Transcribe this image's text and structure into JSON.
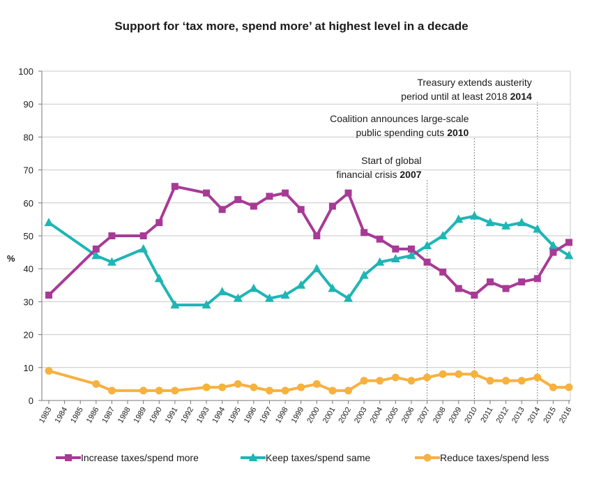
{
  "chart_data": {
    "type": "line",
    "title": "Support for ‘tax more, spend more’ at highest level in a decade",
    "ylabel": "%",
    "ylim": [
      0,
      100
    ],
    "yticks": [
      0,
      10,
      20,
      30,
      40,
      50,
      60,
      70,
      80,
      90,
      100
    ],
    "grid": true,
    "categories": [
      "1983",
      "1984",
      "1985",
      "1986",
      "1987",
      "1988",
      "1989",
      "1990",
      "1991",
      "1992",
      "1993",
      "1994",
      "1995",
      "1996",
      "1997",
      "1998",
      "1999",
      "2000",
      "2001",
      "2002",
      "2003",
      "2004",
      "2005",
      "2006",
      "2007",
      "2008",
      "2009",
      "2010",
      "2011",
      "2012",
      "2013",
      "2014",
      "2015",
      "2016"
    ],
    "series": [
      {
        "name": "Increase taxes/spend more",
        "color": "#a83a96",
        "marker": "square",
        "points": [
          [
            "1983",
            32
          ],
          [
            "1986",
            46
          ],
          [
            "1987",
            50
          ],
          [
            "1989",
            50
          ],
          [
            "1990",
            54
          ],
          [
            "1991",
            65
          ],
          [
            "1993",
            63
          ],
          [
            "1994",
            58
          ],
          [
            "1995",
            61
          ],
          [
            "1996",
            59
          ],
          [
            "1997",
            62
          ],
          [
            "1998",
            63
          ],
          [
            "1999",
            58
          ],
          [
            "2000",
            50
          ],
          [
            "2001",
            59
          ],
          [
            "2002",
            63
          ],
          [
            "2003",
            51
          ],
          [
            "2004",
            49
          ],
          [
            "2005",
            46
          ],
          [
            "2006",
            46
          ],
          [
            "2007",
            42
          ],
          [
            "2008",
            39
          ],
          [
            "2009",
            34
          ],
          [
            "2010",
            32
          ],
          [
            "2011",
            36
          ],
          [
            "2012",
            34
          ],
          [
            "2013",
            36
          ],
          [
            "2014",
            37
          ],
          [
            "2015",
            45
          ],
          [
            "2016",
            48
          ]
        ]
      },
      {
        "name": "Keep taxes/spend same",
        "color": "#1fb5b5",
        "marker": "triangle",
        "points": [
          [
            "1983",
            54
          ],
          [
            "1986",
            44
          ],
          [
            "1987",
            42
          ],
          [
            "1989",
            46
          ],
          [
            "1990",
            37
          ],
          [
            "1991",
            29
          ],
          [
            "1993",
            29
          ],
          [
            "1994",
            33
          ],
          [
            "1995",
            31
          ],
          [
            "1996",
            34
          ],
          [
            "1997",
            31
          ],
          [
            "1998",
            32
          ],
          [
            "1999",
            35
          ],
          [
            "2000",
            40
          ],
          [
            "2001",
            34
          ],
          [
            "2002",
            31
          ],
          [
            "2003",
            38
          ],
          [
            "2004",
            42
          ],
          [
            "2005",
            43
          ],
          [
            "2006",
            44
          ],
          [
            "2007",
            47
          ],
          [
            "2008",
            50
          ],
          [
            "2009",
            55
          ],
          [
            "2010",
            56
          ],
          [
            "2011",
            54
          ],
          [
            "2012",
            53
          ],
          [
            "2013",
            54
          ],
          [
            "2014",
            52
          ],
          [
            "2015",
            47
          ],
          [
            "2016",
            44
          ]
        ]
      },
      {
        "name": "Reduce taxes/spend less",
        "color": "#f7b13f",
        "marker": "circle",
        "points": [
          [
            "1983",
            9
          ],
          [
            "1986",
            5
          ],
          [
            "1987",
            3
          ],
          [
            "1989",
            3
          ],
          [
            "1990",
            3
          ],
          [
            "1991",
            3
          ],
          [
            "1993",
            4
          ],
          [
            "1994",
            4
          ],
          [
            "1995",
            5
          ],
          [
            "1996",
            4
          ],
          [
            "1997",
            3
          ],
          [
            "1998",
            3
          ],
          [
            "1999",
            4
          ],
          [
            "2000",
            5
          ],
          [
            "2001",
            3
          ],
          [
            "2002",
            3
          ],
          [
            "2003",
            6
          ],
          [
            "2004",
            6
          ],
          [
            "2005",
            7
          ],
          [
            "2006",
            6
          ],
          [
            "2007",
            7
          ],
          [
            "2008",
            8
          ],
          [
            "2009",
            8
          ],
          [
            "2010",
            8
          ],
          [
            "2011",
            6
          ],
          [
            "2012",
            6
          ],
          [
            "2013",
            6
          ],
          [
            "2014",
            7
          ],
          [
            "2015",
            4
          ],
          [
            "2016",
            4
          ]
        ]
      }
    ],
    "annotations": [
      {
        "x": "2007",
        "lines": [
          "Start of global",
          "financial crisis"
        ],
        "bold": "2007"
      },
      {
        "x": "2010",
        "lines": [
          "Coalition announces large-scale",
          "public spending cuts"
        ],
        "bold": "2010"
      },
      {
        "x": "2014",
        "lines": [
          "Treasury extends austerity",
          "period until at least 2018"
        ],
        "bold": "2014"
      }
    ],
    "legend_position": "bottom"
  }
}
